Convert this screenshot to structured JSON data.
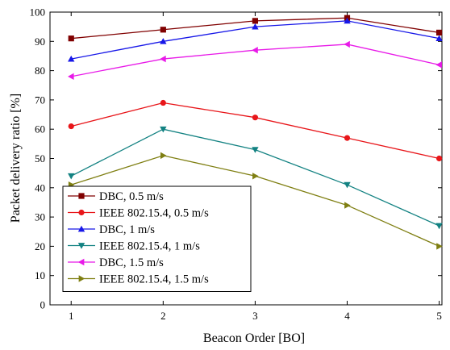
{
  "chart_data": {
    "type": "line",
    "title": "",
    "xlabel": "Beacon Order [BO]",
    "ylabel": "Packet delivery ratio [%]",
    "x": [
      1,
      2,
      3,
      4,
      5
    ],
    "xlim": [
      0.77,
      5.03
    ],
    "ylim": [
      0,
      100
    ],
    "x_ticks": [
      1,
      2,
      3,
      4,
      5
    ],
    "y_ticks": [
      0,
      10,
      20,
      30,
      40,
      50,
      60,
      70,
      80,
      90,
      100
    ],
    "grid": false,
    "legend_position": "bottom-left",
    "series": [
      {
        "name": "DBC, 0.5 m/s",
        "values": [
          91,
          94,
          97,
          98,
          93
        ],
        "color": "#800000",
        "marker": "square"
      },
      {
        "name": "IEEE 802.15.4, 0.5 m/s",
        "values": [
          61,
          69,
          64,
          57,
          50
        ],
        "color": "#e8161a",
        "marker": "circle"
      },
      {
        "name": "DBC, 1 m/s",
        "values": [
          84,
          90,
          95,
          97,
          91
        ],
        "color": "#1717e8",
        "marker": "triangle-up"
      },
      {
        "name": "IEEE 802.15.4, 1 m/s",
        "values": [
          44,
          60,
          53,
          41,
          27
        ],
        "color": "#138282",
        "marker": "triangle-down"
      },
      {
        "name": "DBC, 1.5 m/s",
        "values": [
          78,
          84,
          87,
          89,
          82
        ],
        "color": "#e81ae8",
        "marker": "triangle-left"
      },
      {
        "name": "IEEE 802.15.4, 1.5 m/s",
        "values": [
          41,
          51,
          44,
          34,
          20
        ],
        "color": "#7f7f12",
        "marker": "triangle-right"
      }
    ]
  }
}
